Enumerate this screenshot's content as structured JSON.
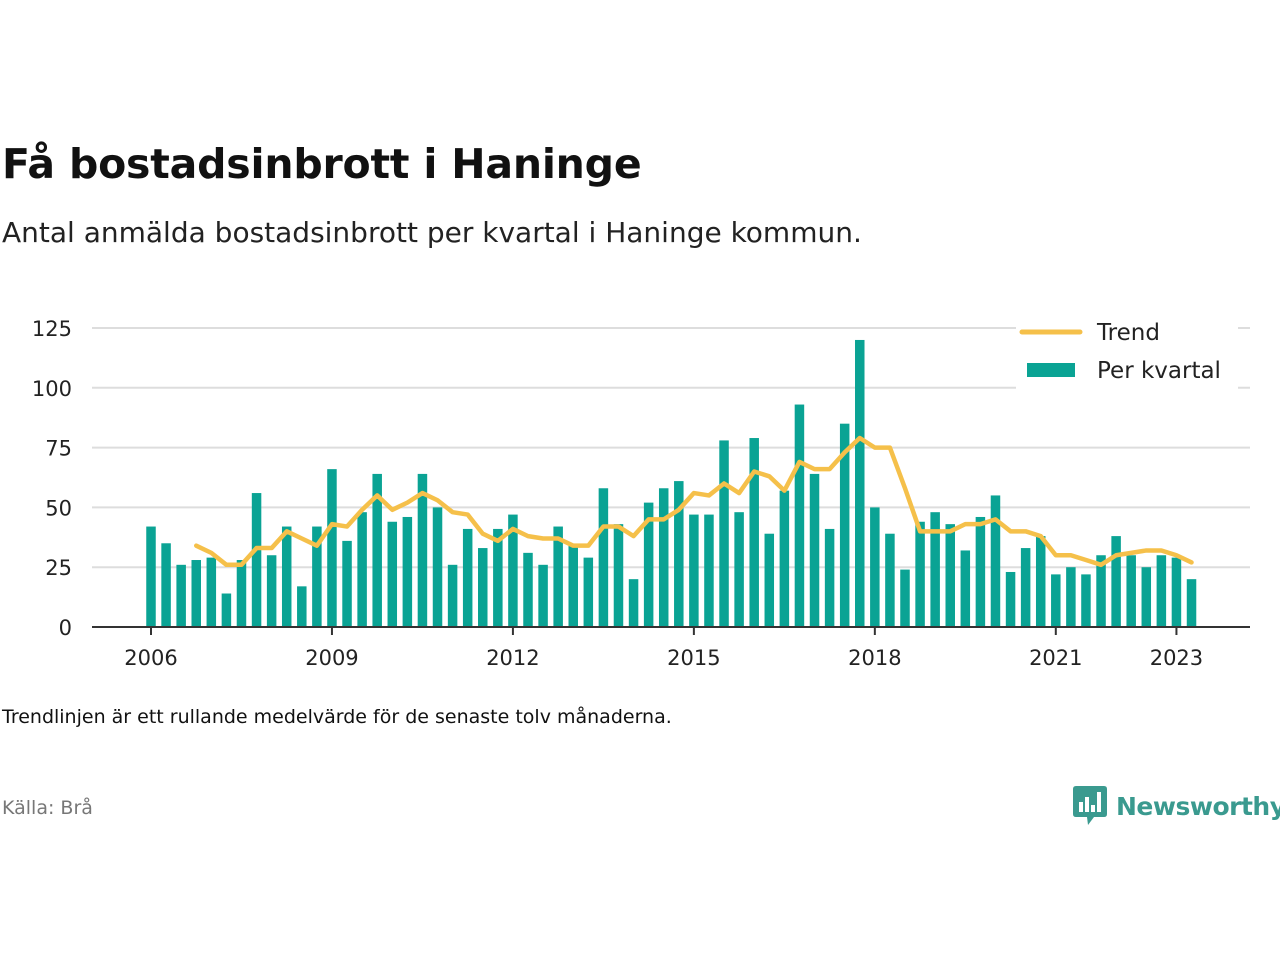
{
  "title": "Få bostadsinbrott i Haninge",
  "subtitle": "Antal anmälda bostadsinbrott per kvartal i Haninge kommun.",
  "footnote": "Trendlinjen är ett rullande medelvärde för de senaste tolv månaderna.",
  "source": "Källa: Brå",
  "brand": "Newsworthy",
  "colors": {
    "bars": "#0aa394",
    "trend": "#f5c04a",
    "grid": "#dddddd",
    "axis": "#333333"
  },
  "chart_data": {
    "type": "bar",
    "x_start": "2006-Q1",
    "ylim": [
      0,
      125
    ],
    "yticks": [
      0,
      25,
      50,
      75,
      100,
      125
    ],
    "xticks": [
      {
        "label": "2006",
        "year": 2006
      },
      {
        "label": "2009",
        "year": 2009
      },
      {
        "label": "2012",
        "year": 2012
      },
      {
        "label": "2015",
        "year": 2015
      },
      {
        "label": "2018",
        "year": 2018
      },
      {
        "label": "2021",
        "year": 2021
      },
      {
        "label": "2023",
        "year": 2023
      }
    ],
    "grid": true,
    "legend_position": "top-right",
    "legend": [
      {
        "label": "Trend",
        "kind": "line"
      },
      {
        "label": "Per kvartal",
        "kind": "bar"
      }
    ],
    "series": [
      {
        "name": "Per kvartal",
        "kind": "bar",
        "values": [
          42,
          35,
          26,
          28,
          29,
          14,
          28,
          56,
          30,
          42,
          17,
          42,
          66,
          36,
          48,
          64,
          44,
          46,
          64,
          50,
          26,
          41,
          33,
          41,
          47,
          31,
          26,
          42,
          34,
          29,
          58,
          43,
          20,
          52,
          58,
          61,
          47,
          47,
          78,
          48,
          79,
          39,
          57,
          93,
          64,
          41,
          85,
          120,
          50,
          39,
          24,
          44,
          48,
          43,
          32,
          46,
          55,
          23,
          33,
          38,
          22,
          25,
          22,
          30,
          38,
          30,
          25,
          30,
          29,
          20
        ]
      },
      {
        "name": "Trend",
        "kind": "line",
        "values": [
          null,
          null,
          null,
          34,
          31,
          26,
          26,
          33,
          33,
          40,
          37,
          34,
          43,
          42,
          49,
          55,
          49,
          52,
          56,
          53,
          48,
          47,
          39,
          36,
          41,
          38,
          37,
          37,
          34,
          34,
          42,
          42,
          38,
          45,
          45,
          49,
          56,
          55,
          60,
          56,
          65,
          63,
          57,
          69,
          66,
          66,
          73,
          79,
          75,
          75,
          58,
          40,
          40,
          40,
          43,
          43,
          45,
          40,
          40,
          38,
          30,
          30,
          28,
          26,
          30,
          31,
          32,
          32,
          30,
          27
        ]
      }
    ]
  }
}
